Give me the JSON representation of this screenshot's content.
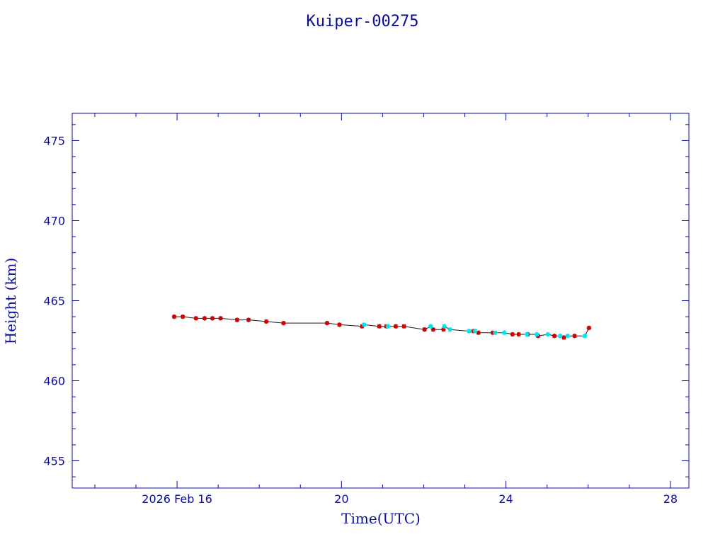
{
  "chart_data": {
    "type": "scatter",
    "title": "Kuiper-00275",
    "xlabel": "Time(UTC)",
    "ylabel": "Height (km)",
    "x_unit": "days, February 2026",
    "xlim": [
      13.45,
      28.45
    ],
    "ylim": [
      453.3,
      476.7
    ],
    "x_ticks": [
      {
        "value": 16,
        "label": "2026 Feb 16"
      },
      {
        "value": 20,
        "label": "20"
      },
      {
        "value": 24,
        "label": "24"
      },
      {
        "value": 28,
        "label": "28"
      }
    ],
    "y_ticks": [
      {
        "value": 455,
        "label": "455"
      },
      {
        "value": 460,
        "label": "460"
      },
      {
        "value": 465,
        "label": "465"
      },
      {
        "value": 470,
        "label": "470"
      },
      {
        "value": 475,
        "label": "475"
      }
    ],
    "grid": false,
    "series": [
      {
        "marker": "red-star",
        "color": "#cc0000",
        "x": [
          15.93,
          16.14,
          16.46,
          16.67,
          16.86,
          17.06,
          17.46,
          17.74,
          18.17,
          18.59,
          19.65,
          19.95,
          20.5,
          20.92,
          21.09,
          21.32,
          21.52,
          22.02,
          22.23,
          22.48,
          23.21,
          23.33,
          23.68,
          24.16,
          24.31,
          24.53,
          24.78,
          25.18,
          25.41,
          25.67,
          26.02
        ],
        "y": [
          464.0,
          464.0,
          463.9,
          463.9,
          463.9,
          463.9,
          463.8,
          463.8,
          463.7,
          463.6,
          463.6,
          463.5,
          463.4,
          463.4,
          463.4,
          463.4,
          463.4,
          463.2,
          463.2,
          463.2,
          463.1,
          463.0,
          463.0,
          462.9,
          462.9,
          462.9,
          462.8,
          462.8,
          462.7,
          462.8,
          463.3
        ]
      },
      {
        "marker": "cyan-star",
        "color": "#00e5ee",
        "x": [
          20.55,
          21.13,
          22.17,
          22.5,
          22.64,
          23.1,
          23.25,
          23.74,
          23.96,
          24.51,
          24.75,
          25.02,
          25.32,
          25.5,
          25.92
        ],
        "y": [
          463.5,
          463.4,
          463.4,
          463.4,
          463.2,
          463.1,
          463.1,
          463.0,
          463.0,
          462.9,
          462.9,
          462.9,
          462.8,
          462.8,
          462.8
        ]
      }
    ]
  },
  "colors": {
    "axis": "#0a0aa0",
    "line": "#1a1a1a"
  }
}
